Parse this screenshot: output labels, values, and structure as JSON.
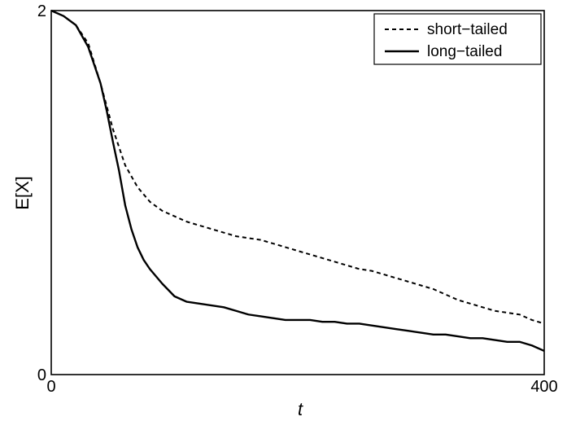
{
  "chart_data": {
    "type": "line",
    "xlabel": "t",
    "ylabel": "E[X]",
    "xlim": [
      0,
      400
    ],
    "ylim": [
      0,
      2
    ],
    "xticks": [
      {
        "value": 0,
        "label": "0"
      },
      {
        "value": 400,
        "label": "400"
      }
    ],
    "yticks": [
      {
        "value": 0,
        "label": "0"
      },
      {
        "value": 2,
        "label": "2"
      }
    ],
    "grid": false,
    "legend_position": "top-right",
    "series": [
      {
        "name": "short−tailed",
        "style": "dashed",
        "color": "#000000",
        "x": [
          0,
          10,
          20,
          30,
          40,
          50,
          55,
          60,
          70,
          80,
          90,
          100,
          110,
          120,
          130,
          140,
          150,
          160,
          170,
          180,
          190,
          200,
          210,
          220,
          230,
          240,
          250,
          260,
          270,
          280,
          290,
          300,
          310,
          320,
          330,
          340,
          350,
          360,
          370,
          380,
          390,
          400
        ],
        "values": [
          2.0,
          1.97,
          1.92,
          1.82,
          1.6,
          1.35,
          1.25,
          1.15,
          1.03,
          0.95,
          0.9,
          0.87,
          0.84,
          0.82,
          0.8,
          0.78,
          0.76,
          0.75,
          0.74,
          0.72,
          0.7,
          0.68,
          0.66,
          0.64,
          0.62,
          0.6,
          0.58,
          0.57,
          0.55,
          0.53,
          0.51,
          0.49,
          0.47,
          0.44,
          0.41,
          0.39,
          0.37,
          0.35,
          0.34,
          0.33,
          0.3,
          0.28
        ]
      },
      {
        "name": "long−tailed",
        "style": "solid",
        "color": "#000000",
        "x": [
          0,
          10,
          20,
          30,
          40,
          45,
          50,
          55,
          60,
          65,
          70,
          75,
          80,
          90,
          100,
          110,
          120,
          130,
          140,
          150,
          160,
          170,
          180,
          190,
          200,
          210,
          220,
          230,
          240,
          250,
          260,
          270,
          280,
          290,
          300,
          310,
          320,
          330,
          340,
          350,
          360,
          370,
          380,
          390,
          400
        ],
        "values": [
          2.0,
          1.97,
          1.92,
          1.8,
          1.6,
          1.45,
          1.28,
          1.12,
          0.93,
          0.8,
          0.7,
          0.63,
          0.58,
          0.5,
          0.43,
          0.4,
          0.39,
          0.38,
          0.37,
          0.35,
          0.33,
          0.32,
          0.31,
          0.3,
          0.3,
          0.3,
          0.29,
          0.29,
          0.28,
          0.28,
          0.27,
          0.26,
          0.25,
          0.24,
          0.23,
          0.22,
          0.22,
          0.21,
          0.2,
          0.2,
          0.19,
          0.18,
          0.18,
          0.16,
          0.13
        ]
      }
    ]
  }
}
